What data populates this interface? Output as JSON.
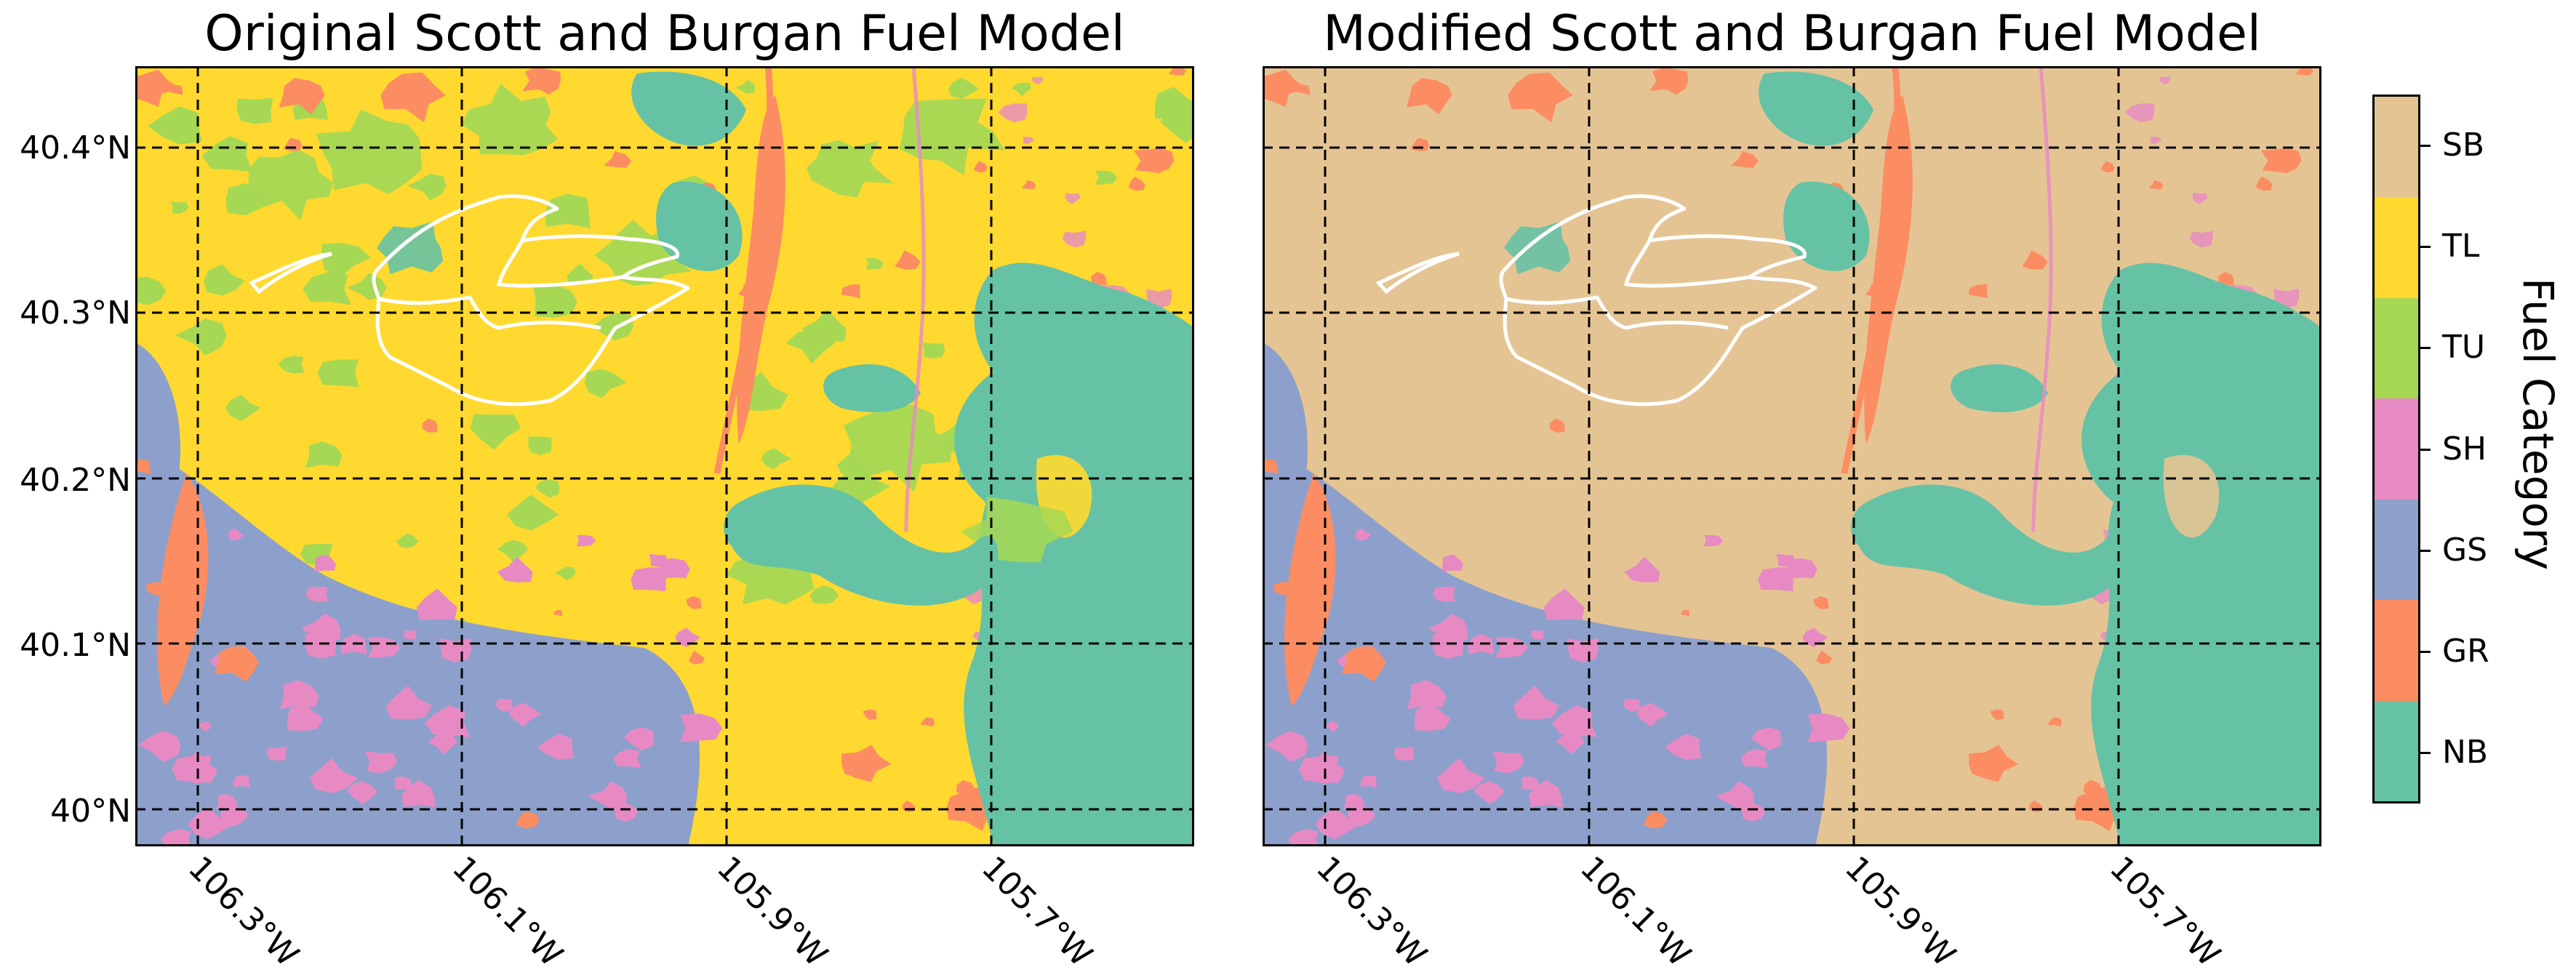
{
  "panels": [
    {
      "title": "Original Scott and Burgan Fuel Model",
      "variant": "original"
    },
    {
      "title": "Modified Scott and Burgan Fuel Model",
      "variant": "modified"
    }
  ],
  "lat_labels": [
    "40.4°N",
    "40.3°N",
    "40.2°N",
    "40.1°N",
    "40°N"
  ],
  "lon_labels": [
    "106.3°W",
    "106.1°W",
    "105.9°W",
    "105.7°W"
  ],
  "colorbar": {
    "title": "Fuel Category",
    "categories": [
      {
        "label": "SB",
        "color": "#e5c494"
      },
      {
        "label": "TL",
        "color": "#ffd92f"
      },
      {
        "label": "TU",
        "color": "#a6d854"
      },
      {
        "label": "SH",
        "color": "#e78ac3"
      },
      {
        "label": "GS",
        "color": "#8da0cb"
      },
      {
        "label": "GR",
        "color": "#fc8d62"
      },
      {
        "label": "NB",
        "color": "#66c2a5"
      }
    ]
  },
  "map_style": {
    "gridline": "dashed-black",
    "perimeter_color": "#ffffff"
  }
}
